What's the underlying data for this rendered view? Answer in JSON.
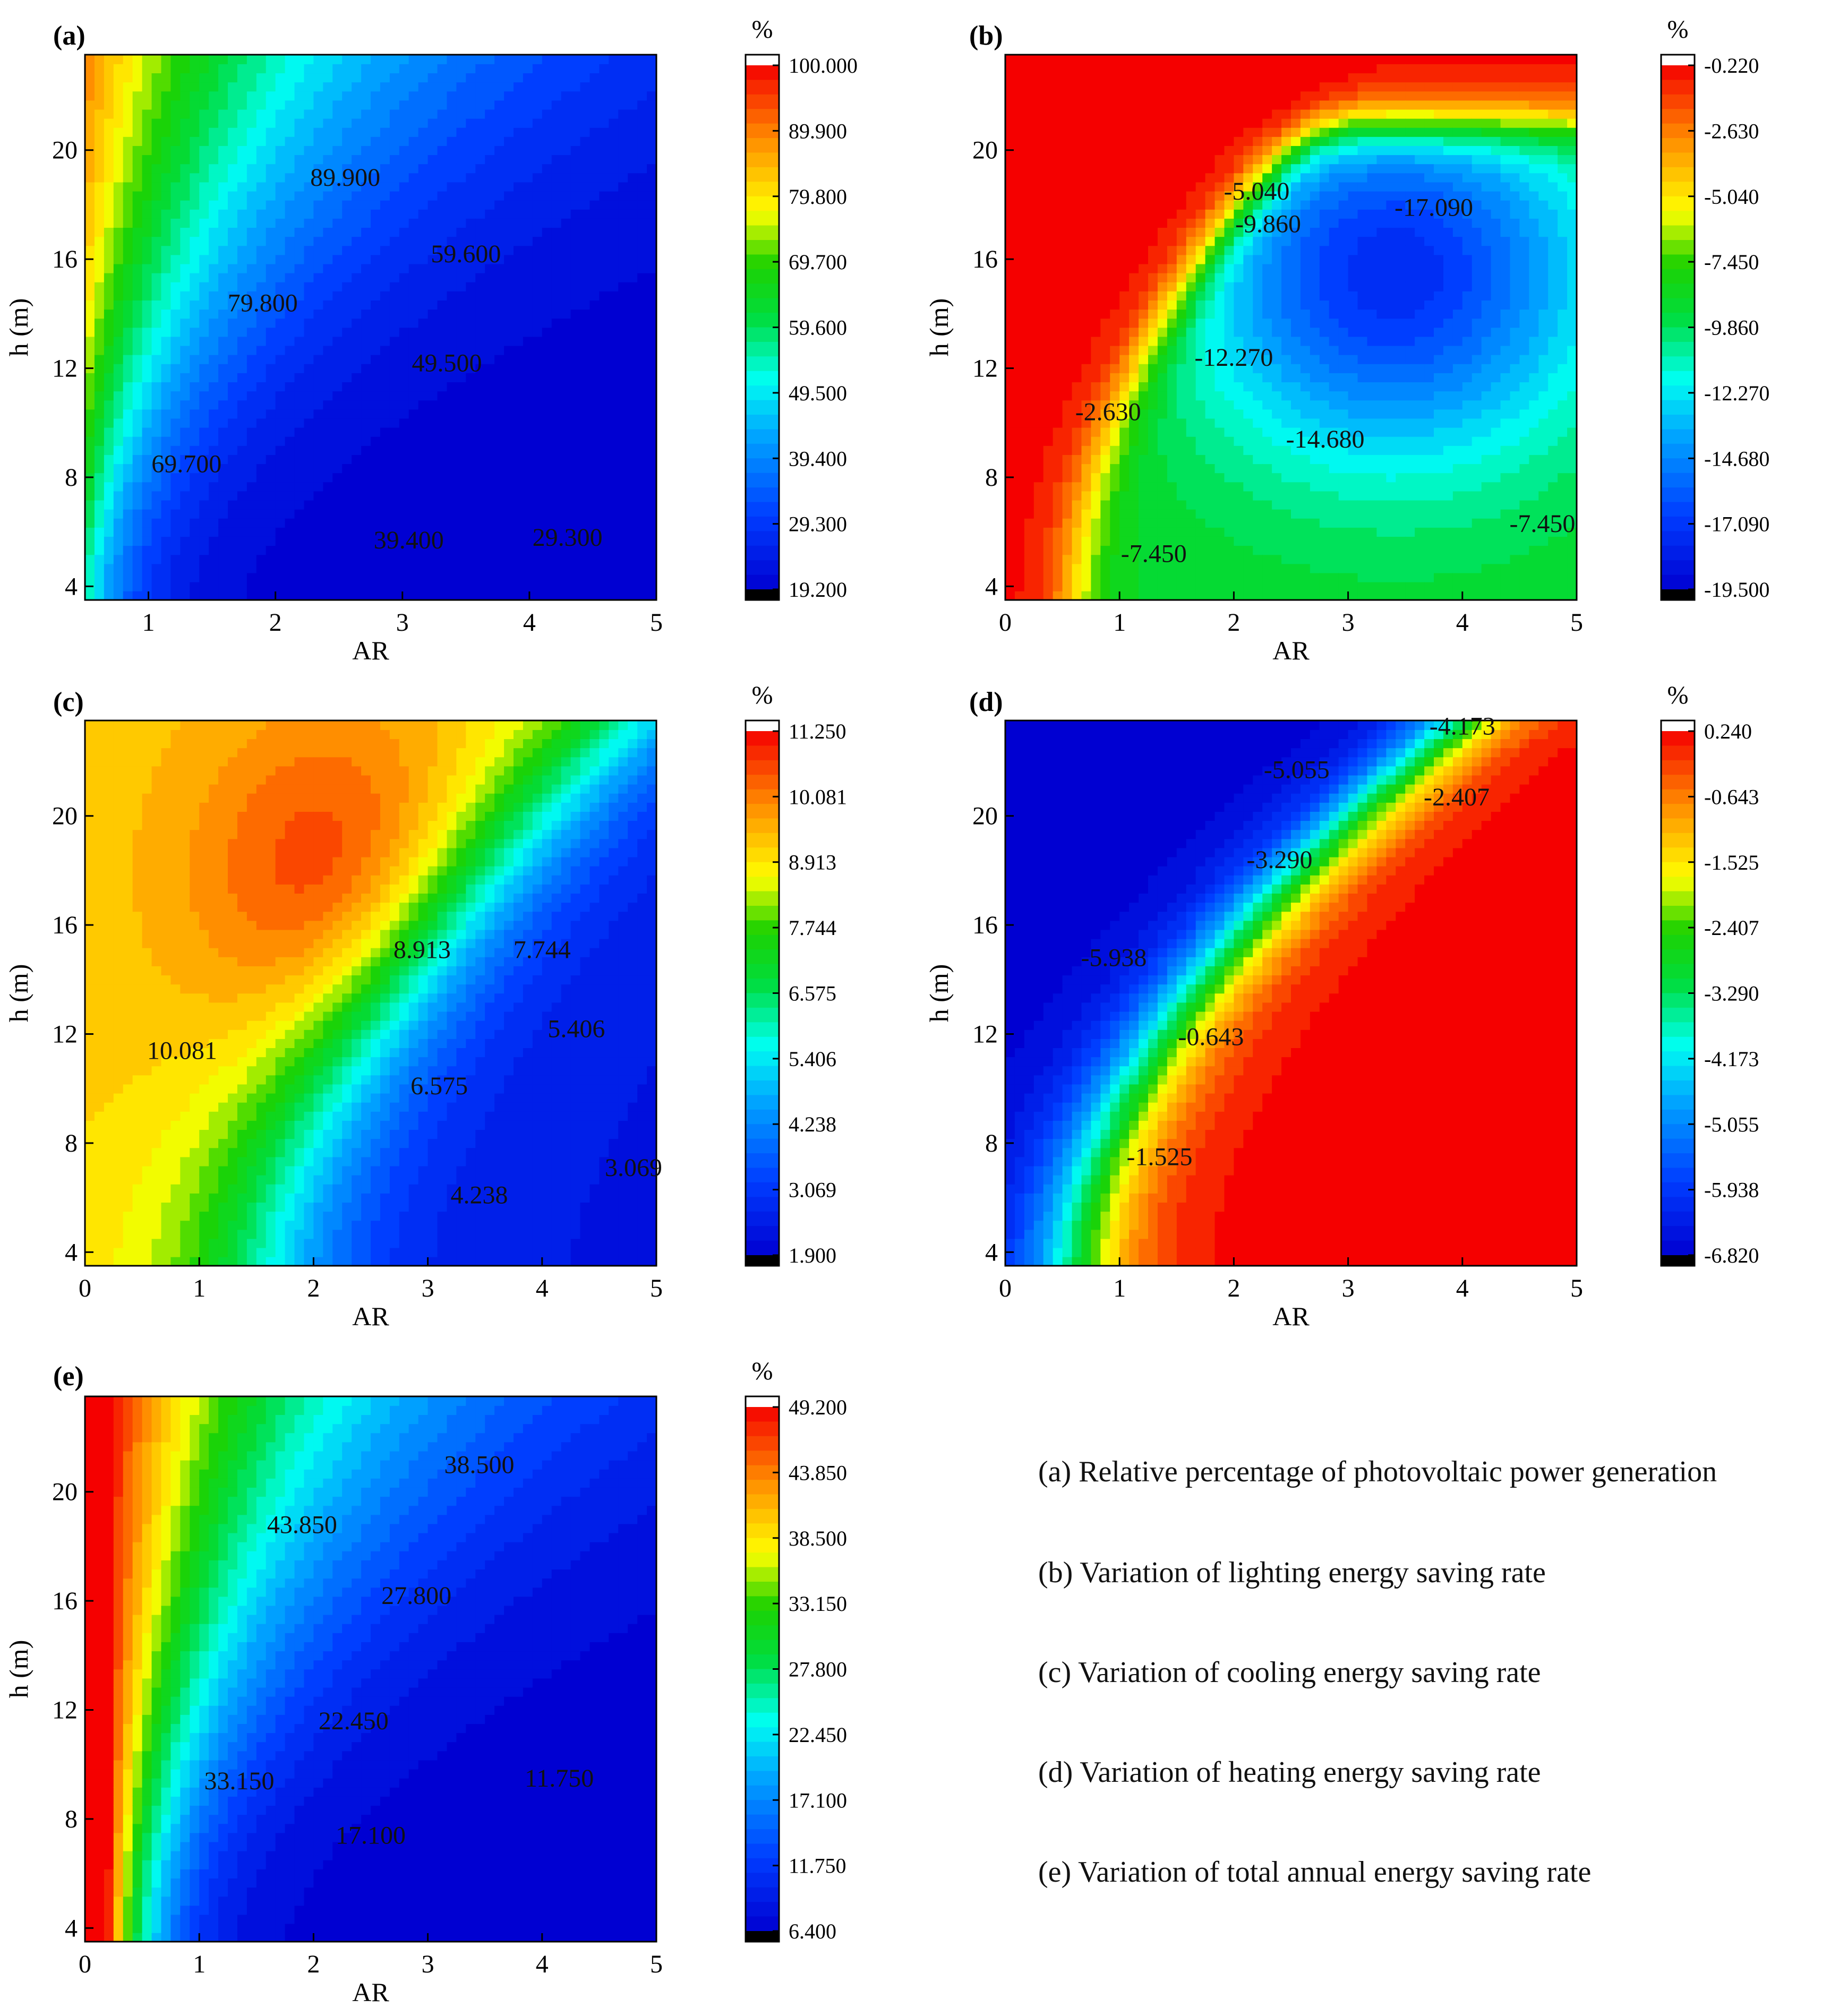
{
  "figure": {
    "legend_lines": [
      "(a) Relative percentage of photovoltaic power generation",
      "(b) Variation of lighting energy saving rate",
      "(c) Variation of cooling energy saving rate",
      "(d) Variation of heating energy saving rate",
      "(e) Variation of total annual energy saving rate"
    ]
  },
  "chart_data": [
    {
      "type": "heatmap",
      "label": "(a)",
      "xlabel": "AR",
      "ylabel": "h (m)",
      "xlim": [
        0.5,
        5
      ],
      "ylim": [
        3.5,
        23.5
      ],
      "xticks": [
        "1",
        "2",
        "3",
        "4",
        "5"
      ],
      "xtick_values": [
        1,
        2,
        3,
        4,
        5
      ],
      "yticks": [
        "4",
        "8",
        "12",
        "16",
        "20"
      ],
      "ytick_values": [
        4,
        8,
        12,
        16,
        20
      ],
      "colorbar_unit": "%",
      "value_range": [
        19.2,
        100.0
      ],
      "colorbar_ticks": [
        "100.000",
        "89.900",
        "79.800",
        "69.700",
        "59.600",
        "49.500",
        "39.400",
        "29.300",
        "19.200"
      ],
      "colorbar_tick_values": [
        100.0,
        89.9,
        79.8,
        69.7,
        59.6,
        49.5,
        39.4,
        29.3,
        19.2
      ],
      "contour_labels": [
        {
          "text": "89.900",
          "x": 2.55,
          "y": 19.0
        },
        {
          "text": "79.800",
          "x": 1.9,
          "y": 14.4
        },
        {
          "text": "69.700",
          "x": 1.3,
          "y": 8.5
        },
        {
          "text": "59.600",
          "x": 3.5,
          "y": 16.2
        },
        {
          "text": "49.500",
          "x": 3.35,
          "y": 12.2
        },
        {
          "text": "39.400",
          "x": 3.05,
          "y": 5.7
        },
        {
          "text": "29.300",
          "x": 4.3,
          "y": 5.8
        }
      ],
      "model": {
        "type": "power",
        "vmax": 100.0,
        "vmin": 19.2,
        "k": 0.9
      }
    },
    {
      "type": "heatmap",
      "label": "(b)",
      "xlabel": "AR",
      "ylabel": "h (m)",
      "xlim": [
        0,
        5
      ],
      "ylim": [
        3.5,
        23.5
      ],
      "xticks": [
        "0",
        "1",
        "2",
        "3",
        "4",
        "5"
      ],
      "xtick_values": [
        0,
        1,
        2,
        3,
        4,
        5
      ],
      "yticks": [
        "4",
        "8",
        "12",
        "16",
        "20"
      ],
      "ytick_values": [
        4,
        8,
        12,
        16,
        20
      ],
      "colorbar_unit": "%",
      "value_range": [
        -19.5,
        -0.22
      ],
      "colorbar_ticks": [
        "-0.220",
        "-2.630",
        "-5.040",
        "-7.450",
        "-9.860",
        "-12.270",
        "-14.680",
        "-17.090",
        "-19.500"
      ],
      "colorbar_tick_values": [
        -0.22,
        -2.63,
        -5.04,
        -7.45,
        -9.86,
        -12.27,
        -14.68,
        -17.09,
        -19.5
      ],
      "contour_labels": [
        {
          "text": "-5.040",
          "x": 2.2,
          "y": 18.5
        },
        {
          "text": "-9.860",
          "x": 2.3,
          "y": 17.3
        },
        {
          "text": "-17.090",
          "x": 3.75,
          "y": 17.9
        },
        {
          "text": "-12.270",
          "x": 2.0,
          "y": 12.4
        },
        {
          "text": "-2.630",
          "x": 0.9,
          "y": 10.4
        },
        {
          "text": "-14.680",
          "x": 2.8,
          "y": 9.4
        },
        {
          "text": "-7.450",
          "x": 1.3,
          "y": 5.2
        },
        {
          "text": "-7.450",
          "x": 4.7,
          "y": 6.3
        }
      ],
      "model": {
        "type": "valley",
        "vmax": -0.22,
        "vmin": -19.5
      }
    },
    {
      "type": "heatmap",
      "label": "(c)",
      "xlabel": "AR",
      "ylabel": "h (m)",
      "xlim": [
        0,
        5
      ],
      "ylim": [
        3.5,
        23.5
      ],
      "xticks": [
        "0",
        "1",
        "2",
        "3",
        "4",
        "5"
      ],
      "xtick_values": [
        0,
        1,
        2,
        3,
        4,
        5
      ],
      "yticks": [
        "4",
        "8",
        "12",
        "16",
        "20"
      ],
      "ytick_values": [
        4,
        8,
        12,
        16,
        20
      ],
      "colorbar_unit": "%",
      "value_range": [
        1.9,
        11.25
      ],
      "colorbar_ticks": [
        "11.250",
        "10.081",
        "8.913",
        "7.744",
        "6.575",
        "5.406",
        "4.238",
        "3.069",
        "1.900"
      ],
      "colorbar_tick_values": [
        11.25,
        10.081,
        8.913,
        7.744,
        6.575,
        5.406,
        4.238,
        3.069,
        1.9
      ],
      "contour_labels": [
        {
          "text": "10.081",
          "x": 0.85,
          "y": 11.4
        },
        {
          "text": "8.913",
          "x": 2.95,
          "y": 15.1
        },
        {
          "text": "7.744",
          "x": 4.0,
          "y": 15.1
        },
        {
          "text": "6.575",
          "x": 3.1,
          "y": 10.1
        },
        {
          "text": "5.406",
          "x": 4.3,
          "y": 12.2
        },
        {
          "text": "4.238",
          "x": 3.45,
          "y": 6.1
        },
        {
          "text": "3.069",
          "x": 4.8,
          "y": 7.1
        }
      ],
      "model": {
        "type": "cooling",
        "vmax": 11.25,
        "vmin": 1.9
      }
    },
    {
      "type": "heatmap",
      "label": "(d)",
      "xlabel": "AR",
      "ylabel": "h (m)",
      "xlim": [
        0,
        5
      ],
      "ylim": [
        3.5,
        23.5
      ],
      "xticks": [
        "0",
        "1",
        "2",
        "3",
        "4",
        "5"
      ],
      "xtick_values": [
        0,
        1,
        2,
        3,
        4,
        5
      ],
      "yticks": [
        "4",
        "8",
        "12",
        "16",
        "20"
      ],
      "ytick_values": [
        4,
        8,
        12,
        16,
        20
      ],
      "colorbar_unit": "%",
      "value_range": [
        -6.82,
        0.24
      ],
      "colorbar_ticks": [
        "0.240",
        "-0.643",
        "-1.525",
        "-2.407",
        "-3.290",
        "-4.173",
        "-5.055",
        "-5.938",
        "-6.820"
      ],
      "colorbar_tick_values": [
        0.24,
        -0.643,
        -1.525,
        -2.407,
        -3.29,
        -4.173,
        -5.055,
        -5.938,
        -6.82
      ],
      "contour_labels": [
        {
          "text": "-4.173",
          "x": 4.0,
          "y": 23.3
        },
        {
          "text": "-5.055",
          "x": 2.55,
          "y": 21.7
        },
        {
          "text": "-2.407",
          "x": 3.95,
          "y": 20.7
        },
        {
          "text": "-3.290",
          "x": 2.4,
          "y": 18.4
        },
        {
          "text": "-5.938",
          "x": 0.95,
          "y": 14.8
        },
        {
          "text": "-0.643",
          "x": 1.8,
          "y": 11.9
        },
        {
          "text": "-1.525",
          "x": 1.35,
          "y": 7.5
        }
      ],
      "model": {
        "type": "heating",
        "vmax": 0.24,
        "vmin": -6.82
      }
    },
    {
      "type": "heatmap",
      "label": "(e)",
      "xlabel": "AR",
      "ylabel": "h (m)",
      "xlim": [
        0,
        5
      ],
      "ylim": [
        3.5,
        23.5
      ],
      "xticks": [
        "0",
        "1",
        "2",
        "3",
        "4",
        "5"
      ],
      "xtick_values": [
        0,
        1,
        2,
        3,
        4,
        5
      ],
      "yticks": [
        "4",
        "8",
        "12",
        "16",
        "20"
      ],
      "ytick_values": [
        4,
        8,
        12,
        16,
        20
      ],
      "colorbar_unit": "%",
      "value_range": [
        6.4,
        49.2
      ],
      "colorbar_ticks": [
        "49.200",
        "43.850",
        "38.500",
        "33.150",
        "27.800",
        "22.450",
        "17.100",
        "11.750",
        "6.400"
      ],
      "colorbar_tick_values": [
        49.2,
        43.85,
        38.5,
        33.15,
        27.8,
        22.45,
        17.1,
        11.75,
        6.4
      ],
      "contour_labels": [
        {
          "text": "38.500",
          "x": 3.45,
          "y": 21.0
        },
        {
          "text": "43.850",
          "x": 1.9,
          "y": 18.8
        },
        {
          "text": "27.800",
          "x": 2.9,
          "y": 16.2
        },
        {
          "text": "22.450",
          "x": 2.35,
          "y": 11.6
        },
        {
          "text": "33.150",
          "x": 1.35,
          "y": 9.4
        },
        {
          "text": "17.100",
          "x": 2.5,
          "y": 7.4
        },
        {
          "text": "11.750",
          "x": 4.15,
          "y": 9.5
        }
      ],
      "model": {
        "type": "power",
        "vmax": 49.2,
        "vmin": 6.4,
        "k": 0.9
      }
    }
  ]
}
